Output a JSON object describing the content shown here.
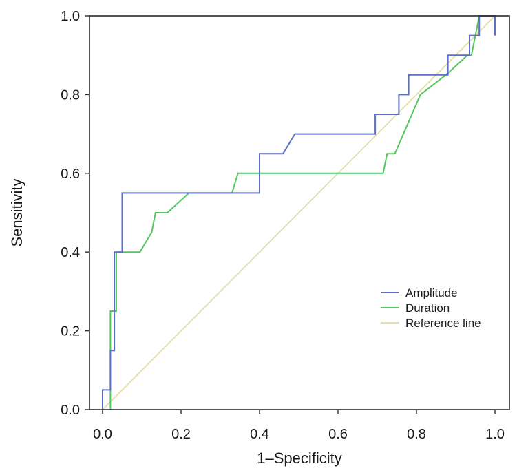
{
  "chart_data": {
    "type": "line",
    "title": "",
    "xlabel": "1–Specificity",
    "ylabel": "Sensitivity",
    "xlim": [
      0,
      1
    ],
    "ylim": [
      0,
      1
    ],
    "x_ticks": [
      "0.0",
      "0.2",
      "0.4",
      "0.6",
      "0.8",
      "1.0"
    ],
    "y_ticks": [
      "0.0",
      "0.2",
      "0.4",
      "0.6",
      "0.8",
      "1.0"
    ],
    "grid": false,
    "legend_position": "bottom-right",
    "series": [
      {
        "name": "Amplitude",
        "color": "#5b6fc6",
        "x": [
          0.0,
          0.0,
          0.02,
          0.02,
          0.03,
          0.03,
          0.05,
          0.05,
          0.4,
          0.4,
          0.46,
          0.49,
          0.695,
          0.695,
          0.755,
          0.755,
          0.78,
          0.78,
          0.88,
          0.88,
          0.935,
          0.935,
          0.96,
          0.96,
          1.0,
          1.0
        ],
        "y": [
          0.0,
          0.05,
          0.05,
          0.15,
          0.15,
          0.4,
          0.4,
          0.55,
          0.55,
          0.65,
          0.65,
          0.7,
          0.7,
          0.75,
          0.75,
          0.8,
          0.8,
          0.85,
          0.85,
          0.9,
          0.9,
          0.95,
          0.95,
          1.0,
          1.0,
          0.95
        ]
      },
      {
        "name": "Duration",
        "color": "#54c65f",
        "x": [
          0.02,
          0.02,
          0.035,
          0.035,
          0.045,
          0.095,
          0.125,
          0.135,
          0.165,
          0.22,
          0.33,
          0.345,
          0.715,
          0.725,
          0.745,
          0.81,
          0.875,
          0.93,
          0.94,
          0.96,
          1.0
        ],
        "y": [
          0.0,
          0.25,
          0.25,
          0.4,
          0.4,
          0.4,
          0.45,
          0.5,
          0.5,
          0.55,
          0.55,
          0.6,
          0.6,
          0.65,
          0.65,
          0.8,
          0.85,
          0.9,
          0.9,
          1.0,
          1.0
        ]
      },
      {
        "name": "Reference line",
        "color": "#e6dfb0",
        "x": [
          0.0,
          1.0
        ],
        "y": [
          0.0,
          1.0
        ]
      }
    ]
  }
}
